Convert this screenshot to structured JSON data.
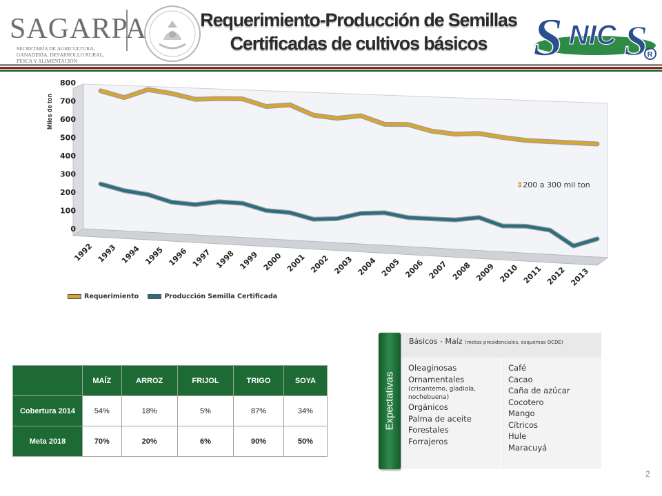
{
  "header": {
    "org_name": "SAGARPA",
    "org_lines": [
      "SECRETARÍA DE AGRICULTURA,",
      "GANADERÍA, DESARROLLO RURAL,",
      "PESCA Y ALIMENTACIÓN"
    ],
    "title_line1": "Requerimiento-Producción de Semillas",
    "title_line2": "Certificadas de cultivos básicos",
    "logo_right": "SNICS",
    "logo_mark": "®"
  },
  "chart_data": {
    "type": "line",
    "ylabel": "Miles de ton",
    "ylim": [
      0,
      800
    ],
    "yticks": [
      0,
      100,
      200,
      300,
      400,
      500,
      600,
      700,
      800
    ],
    "categories": [
      "1992",
      "1993",
      "1994",
      "1995",
      "1996",
      "1997",
      "1998",
      "1999",
      "2000",
      "2001",
      "2002",
      "2003",
      "2004",
      "2005",
      "2006",
      "2007",
      "2008",
      "2009",
      "2010",
      "2011",
      "2012",
      "2013"
    ],
    "series": [
      {
        "name": "Requerimiento",
        "color": "#d8a530",
        "values": [
          755,
          725,
          775,
          760,
          735,
          745,
          750,
          715,
          730,
          680,
          670,
          690,
          650,
          655,
          625,
          615,
          625,
          610,
          600,
          600,
          600,
          600
        ]
      },
      {
        "name": "Producción Semilla Certificada",
        "color": "#2b6e80",
        "values": [
          245,
          215,
          200,
          165,
          158,
          180,
          178,
          145,
          140,
          110,
          120,
          155,
          165,
          145,
          145,
          145,
          165,
          125,
          130,
          115,
          35,
          80
        ]
      }
    ],
    "annotation": "200 a 300 mil ton",
    "grid": false,
    "legend_position": "bottom-left"
  },
  "table": {
    "headers": [
      "",
      "MAÍZ",
      "ARROZ",
      "FRIJOL",
      "TRIGO",
      "SOYA"
    ],
    "rows": [
      {
        "label": "Cobertura 2014",
        "values": [
          "54%",
          "18%",
          "5%",
          "87%",
          "34%"
        ]
      },
      {
        "label": "Meta 2018",
        "values": [
          "70%",
          "20%",
          "6%",
          "90%",
          "50%"
        ]
      }
    ]
  },
  "expectativas": {
    "tab_label": "Expectativas",
    "top_main": "Básicos - Maíz",
    "top_small": "(metas presidenciales, esquemas OCDE)",
    "col1": [
      "Oleaginosas",
      "Ornamentales",
      "(crisantemo, gladiola, nochebuena)",
      "Orgánicos",
      "Palma de aceite",
      "Forestales",
      "Forrajeros"
    ],
    "col2": [
      "Café",
      "Cacao",
      "Caña de azúcar",
      "Cocotero",
      "Mango",
      "Cítricos",
      "Hule",
      "Maracuyá"
    ]
  },
  "page_number": "2",
  "colors": {
    "green": "#1e6a34",
    "red_stripe": "#9b1c23",
    "snics_blue": "#2b4f8c",
    "snics_green": "#2e8b46"
  }
}
